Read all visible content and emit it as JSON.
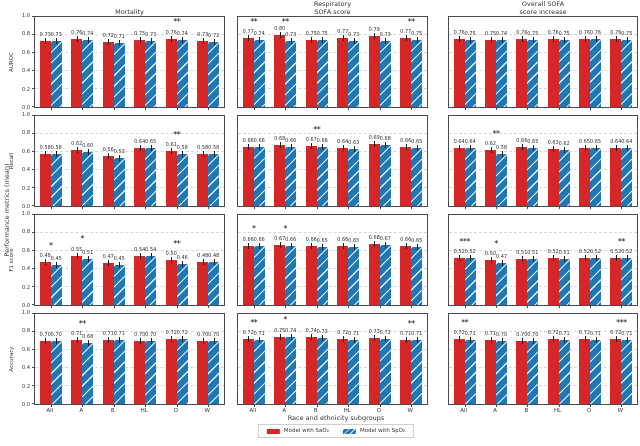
{
  "figure": {
    "ylabel": "Performance metrics (mean)",
    "xlabel": "Race and ethnicity subgroups",
    "legend": [
      {
        "label": "Model with SaO₂",
        "color": "#d62728",
        "hatch": false
      },
      {
        "label": "Model with SpO₂",
        "color": "#1f77b4",
        "hatch": true
      }
    ]
  },
  "chart_data": {
    "type": "bar",
    "layout": "4 rows (metrics) x 3 columns (outcomes) grid of grouped bar panels",
    "categories": [
      "All",
      "A",
      "B",
      "HL",
      "O",
      "W"
    ],
    "row_metrics": [
      "AUROC",
      "Recall",
      "F1 score",
      "Accuracy"
    ],
    "col_outcomes": [
      "Mortality",
      "Respiratory\nSOFA score",
      "Overall SOFA\nscore increase"
    ],
    "series_names": [
      "Model with SaO₂",
      "Model with SpO₂"
    ],
    "colors": [
      "#d62728",
      "#1f77b4"
    ],
    "ylim": [
      0,
      1
    ],
    "yticks": [
      "0.0",
      "0.2",
      "0.4",
      "0.6",
      "0.8",
      "1.0"
    ],
    "grid": "dashed horizontal gridlines at 0.2, 0.4, 0.6, 0.8",
    "legend_position": "bottom center",
    "xlabel": "Race and ethnicity subgroups",
    "ylabel": "Performance metrics (mean)",
    "panels": [
      {
        "metric": "AUROC",
        "outcome": "Mortality",
        "sao2": [
          0.73,
          0.76,
          0.72,
          0.75,
          0.76,
          0.73
        ],
        "spo2": [
          0.73,
          0.74,
          0.71,
          0.73,
          0.74,
          0.72
        ],
        "sig": [
          "",
          "",
          "",
          "",
          "**",
          ""
        ]
      },
      {
        "metric": "AUROC",
        "outcome": "Respiratory SOFA score",
        "sao2": [
          0.77,
          0.8,
          0.75,
          0.77,
          0.79,
          0.77
        ],
        "spo2": [
          0.74,
          0.73,
          0.75,
          0.73,
          0.73,
          0.75
        ],
        "sig": [
          "**",
          "**",
          "",
          "",
          "",
          "**"
        ]
      },
      {
        "metric": "AUROC",
        "outcome": "Overall SOFA score increase",
        "sao2": [
          0.76,
          0.75,
          0.76,
          0.76,
          0.76,
          0.76
        ],
        "spo2": [
          0.75,
          0.74,
          0.75,
          0.75,
          0.76,
          0.75
        ],
        "sig": [
          "",
          "",
          "",
          "",
          "",
          ""
        ]
      },
      {
        "metric": "Recall",
        "outcome": "Mortality",
        "sao2": [
          0.58,
          0.62,
          0.56,
          0.64,
          0.61,
          0.58
        ],
        "spo2": [
          0.58,
          0.6,
          0.53,
          0.65,
          0.58,
          0.58
        ],
        "sig": [
          "",
          "",
          "",
          "",
          "**",
          ""
        ]
      },
      {
        "metric": "Recall",
        "outcome": "Respiratory SOFA score",
        "sao2": [
          0.66,
          0.68,
          0.67,
          0.64,
          0.69,
          0.66
        ],
        "spo2": [
          0.66,
          0.66,
          0.66,
          0.63,
          0.68,
          0.65
        ],
        "sig": [
          "",
          "",
          "**",
          "",
          "",
          ""
        ]
      },
      {
        "metric": "Recall",
        "outcome": "Overall SOFA score increase",
        "sao2": [
          0.64,
          0.62,
          0.66,
          0.63,
          0.65,
          0.64
        ],
        "spo2": [
          0.64,
          0.58,
          0.65,
          0.62,
          0.65,
          0.64
        ],
        "sig": [
          "",
          "**",
          "",
          "",
          "",
          ""
        ]
      },
      {
        "metric": "F1 score",
        "outcome": "Mortality",
        "sao2": [
          0.48,
          0.55,
          0.47,
          0.54,
          0.5,
          0.48
        ],
        "spo2": [
          0.45,
          0.51,
          0.45,
          0.54,
          0.46,
          0.48
        ],
        "sig": [
          "*",
          "*",
          "",
          "",
          "**",
          ""
        ]
      },
      {
        "metric": "F1 score",
        "outcome": "Respiratory SOFA score",
        "sao2": [
          0.66,
          0.67,
          0.66,
          0.66,
          0.68,
          0.66
        ],
        "spo2": [
          0.66,
          0.66,
          0.65,
          0.65,
          0.67,
          0.65
        ],
        "sig": [
          "*",
          "*",
          "",
          "",
          "",
          ""
        ]
      },
      {
        "metric": "F1 score",
        "outcome": "Overall SOFA score increase",
        "sao2": [
          0.52,
          0.5,
          0.51,
          0.52,
          0.52,
          0.52
        ],
        "spo2": [
          0.52,
          0.47,
          0.51,
          0.51,
          0.52,
          0.52
        ],
        "sig": [
          "***",
          "*",
          "",
          "",
          "",
          "**"
        ]
      },
      {
        "metric": "Accuracy",
        "outcome": "Mortality",
        "sao2": [
          0.7,
          0.71,
          0.71,
          0.7,
          0.72,
          0.7
        ],
        "spo2": [
          0.7,
          0.68,
          0.71,
          0.7,
          0.72,
          0.7
        ],
        "sig": [
          "",
          "**",
          "",
          "",
          "",
          ""
        ]
      },
      {
        "metric": "Accuracy",
        "outcome": "Respiratory SOFA score",
        "sao2": [
          0.72,
          0.75,
          0.74,
          0.72,
          0.73,
          0.71
        ],
        "spo2": [
          0.71,
          0.74,
          0.73,
          0.71,
          0.72,
          0.71
        ],
        "sig": [
          "**",
          "*",
          "",
          "",
          "",
          "**"
        ]
      },
      {
        "metric": "Accuracy",
        "outcome": "Overall SOFA score increase",
        "sao2": [
          0.72,
          0.71,
          0.7,
          0.72,
          0.72,
          0.72
        ],
        "spo2": [
          0.71,
          0.7,
          0.7,
          0.71,
          0.71,
          0.71
        ],
        "sig": [
          "**",
          "",
          "",
          "",
          "",
          "***"
        ]
      }
    ]
  }
}
